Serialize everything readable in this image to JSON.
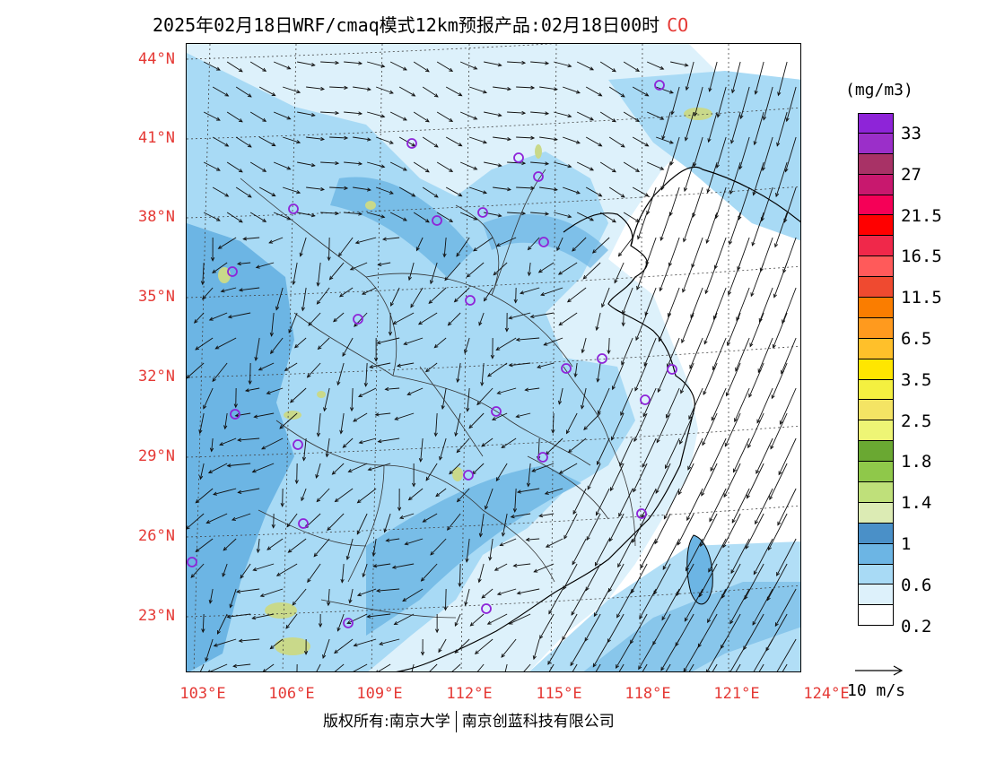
{
  "title": {
    "text": "2025年02月18日WRF/cmaq模式12km预报产品:02月18日00时",
    "species": "CO"
  },
  "map": {
    "lat_labels": [
      "44°N",
      "41°N",
      "38°N",
      "35°N",
      "32°N",
      "29°N",
      "26°N",
      "23°N"
    ],
    "lon_labels": [
      "103°E",
      "106°E",
      "109°E",
      "112°E",
      "115°E",
      "118°E",
      "121°E",
      "124°E"
    ],
    "colors": {
      "sea": "#ffffff",
      "low": "#ddf1fb",
      "mid": "#a8daf5",
      "high": "#6cb5e4",
      "higher": "#4a90c8",
      "hot": "#c9d98a",
      "marker": "#8e24d8",
      "grid": "#555555",
      "coast": "#000000"
    },
    "station_icon": "circle-marker-icon"
  },
  "legend": {
    "unit": "(mg/m3)",
    "swatches": [
      "#8e24d8",
      "#9b2fc9",
      "#a83266",
      "#c8186e",
      "#f50057",
      "#ff0000",
      "#f0284a",
      "#ff5a5a",
      "#ef4a30",
      "#fa7d00",
      "#ff9a1e",
      "#ffc02a",
      "#ffe600",
      "#f4f040",
      "#f4e464",
      "#eef575",
      "#6aa832",
      "#8fc84a",
      "#bfe07a",
      "#dcebb4",
      "#4a90c8",
      "#6cb5e4",
      "#a8daf5",
      "#ddf1fb",
      "#ffffff"
    ],
    "labels": [
      "33",
      "27",
      "21.5",
      "16.5",
      "11.5",
      "6.5",
      "3.5",
      "2.5",
      "1.8",
      "1.4",
      "1",
      "0.6",
      "0.2"
    ]
  },
  "wind_ref": {
    "label": "10 m/s",
    "icon": "arrow-right-icon"
  },
  "footer": {
    "left": "版权所有:南京大学",
    "right": "南京创蓝科技有限公司"
  }
}
